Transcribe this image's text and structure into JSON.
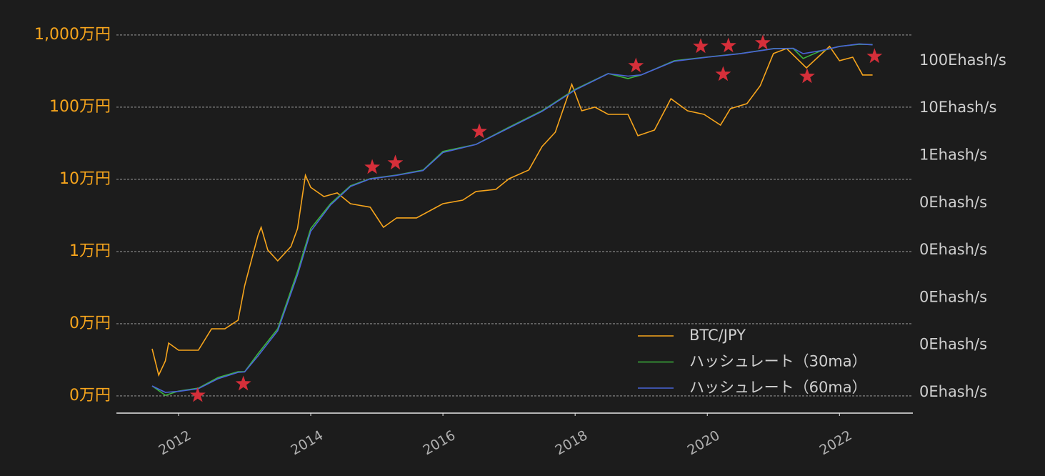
{
  "chart_data": {
    "type": "line",
    "log_scale": true,
    "grid": true,
    "xlim": [
      2011.06,
      2023.11
    ],
    "xticks": [
      2012,
      2014,
      2016,
      2018,
      2020,
      2022
    ],
    "ylim": [
      57.8,
      15400000
    ],
    "yticks": [
      {
        "value": 100,
        "label": "0万円"
      },
      {
        "value": 1000,
        "label": "0万円"
      },
      {
        "value": 10000,
        "label": "1万円"
      },
      {
        "value": 100000,
        "label": "10万円"
      },
      {
        "value": 1000000,
        "label": "100万円"
      },
      {
        "value": 10000000,
        "label": "1,000万円"
      }
    ],
    "y2lim": [
      3660000000000,
      670000000000000000000
    ],
    "y2ticks": [
      {
        "value": 10000000000000,
        "label": "0Ehash/s"
      },
      {
        "value": 100000000000000,
        "label": "0Ehash/s"
      },
      {
        "value": 1000000000000000,
        "label": "0Ehash/s"
      },
      {
        "value": 10000000000000000,
        "label": "0Ehash/s"
      },
      {
        "value": 100000000000000000,
        "label": "0Ehash/s"
      },
      {
        "value": 1000000000000000000,
        "label": "1Ehash/s"
      },
      {
        "value": 10000000000000000000,
        "label": "10Ehash/s"
      },
      {
        "value": 100000000000000000000,
        "label": "100Ehash/s"
      }
    ],
    "legend": "lower right",
    "series": [
      {
        "name": "BTC/JPY",
        "color": "#f7a51c",
        "x": [
          2011.6,
          2011.7,
          2011.8,
          2011.85,
          2012.0,
          2012.3,
          2012.5,
          2012.7,
          2012.9,
          2013.0,
          2013.2,
          2013.25,
          2013.35,
          2013.5,
          2013.7,
          2013.8,
          2013.92,
          2014.0,
          2014.2,
          2014.4,
          2014.6,
          2014.9,
          2015.1,
          2015.3,
          2015.6,
          2015.8,
          2016.0,
          2016.3,
          2016.5,
          2016.8,
          2017.0,
          2017.3,
          2017.5,
          2017.7,
          2017.95,
          2018.1,
          2018.3,
          2018.5,
          2018.8,
          2018.95,
          2019.2,
          2019.45,
          2019.7,
          2019.95,
          2020.2,
          2020.35,
          2020.6,
          2020.8,
          2021.0,
          2021.2,
          2021.5,
          2021.85,
          2022.0,
          2022.2,
          2022.35,
          2022.5
        ],
        "values": [
          450,
          194,
          305,
          540,
          430,
          430,
          850,
          850,
          1120,
          3350,
          16500,
          21700,
          10500,
          7430,
          11700,
          20700,
          114000,
          77600,
          57800,
          64900,
          46000,
          41100,
          21700,
          29200,
          29200,
          36600,
          46000,
          51600,
          67900,
          72600,
          102000,
          135000,
          285000,
          450000,
          2070000,
          891000,
          1000000,
          796000,
          796000,
          402000,
          482000,
          1310000,
          891000,
          796000,
          565000,
          955000,
          1120000,
          1980000,
          5530000,
          6490000,
          3500000,
          6950000,
          4410000,
          4930000,
          2790000,
          2790000
        ]
      },
      {
        "name": "ハッシュレート（30ma）",
        "color": "#3cb43c",
        "axis": "y2",
        "x": [
          2011.6,
          2011.8,
          2012.0,
          2012.3,
          2012.6,
          2012.9,
          2013.0,
          2013.2,
          2013.5,
          2013.8,
          2014.0,
          2014.3,
          2014.6,
          2014.9,
          2015.3,
          2015.7,
          2016.0,
          2016.5,
          2017.0,
          2017.5,
          2018.0,
          2018.5,
          2018.8,
          2019.0,
          2019.5,
          2020.0,
          2020.5,
          2021.0,
          2021.3,
          2021.45,
          2021.7,
          2022.0,
          2022.3,
          2022.5
        ],
        "values": [
          13700000000000,
          8700000000000,
          10700000000000,
          12300000000000,
          20700000000000,
          27300000000000,
          27300000000000,
          65000000000000,
          220000000000000,
          3540000000000000,
          28500000000000000,
          96000000000000000,
          229000000000000000,
          324000000000000000,
          385000000000000000,
          491000000000000000,
          1210000000000000000,
          1710000000000000000,
          3940000000000000000,
          8770000000000000000,
          24800000000000000000,
          53300000000000000000,
          41800000000000000000,
          49800000000000000000,
          99600000000000000000,
          119000000000000000000,
          141000000000000000000,
          180000000000000000000,
          180000000000000000000,
          111000000000000000000,
          157000000000000000000,
          200000000000000000000,
          221000000000000000000,
          218000000000000000000
        ]
      },
      {
        "name": "ハッシュレート（60ma）",
        "color": "#4a64d8",
        "axis": "y2",
        "x": [
          2011.6,
          2011.8,
          2012.0,
          2012.3,
          2012.6,
          2012.9,
          2013.0,
          2013.2,
          2013.5,
          2013.8,
          2014.0,
          2014.3,
          2014.6,
          2014.9,
          2015.3,
          2015.7,
          2016.0,
          2016.5,
          2017.0,
          2017.5,
          2018.0,
          2018.5,
          2018.8,
          2019.0,
          2019.5,
          2020.0,
          2020.5,
          2021.0,
          2021.3,
          2021.45,
          2021.7,
          2022.0,
          2022.3,
          2022.5
        ],
        "values": [
          13700000000000,
          10000000000000,
          10500000000000,
          12000000000000,
          19500000000000,
          26500000000000,
          27000000000000,
          58000000000000,
          200000000000000,
          3000000000000000,
          25000000000000000,
          90000000000000000,
          220000000000000000,
          320000000000000000,
          380000000000000000,
          480000000000000000,
          1150000000000000000,
          1700000000000000000,
          3800000000000000000,
          8500000000000000000,
          24000000000000000000,
          53000000000000000000,
          47000000000000000000,
          50000000000000000000,
          97000000000000000000,
          118000000000000000000,
          140000000000000000000,
          178000000000000000000,
          182000000000000000000,
          140000000000000000000,
          160000000000000000000,
          198000000000000000000,
          225000000000000000000,
          215000000000000000000
        ]
      }
    ],
    "markers": {
      "color": "#d62f3a",
      "x": [
        2012.29,
        2012.98,
        2014.93,
        2015.28,
        2016.55,
        2018.92,
        2019.9,
        2020.24,
        2020.32,
        2020.84,
        2021.51,
        2022.53
      ],
      "values": [
        102,
        147,
        147000,
        169000,
        460000,
        3750000,
        6950000,
        2850000,
        7100000,
        7780000,
        2670000,
        5050000
      ]
    }
  }
}
